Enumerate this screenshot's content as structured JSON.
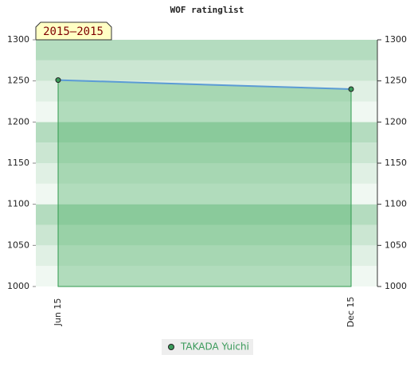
{
  "chart_data": {
    "type": "line",
    "title": "WOF ratinglist",
    "badge": "2015–2015",
    "categories": [
      "Jun 15",
      "Dec 15"
    ],
    "series": [
      {
        "name": "TAKADA Yuichi",
        "color": "#5b9bd5",
        "values": [
          1251,
          1240
        ]
      }
    ],
    "ylim": [
      1000,
      1300
    ],
    "yticks": [
      1000,
      1050,
      1100,
      1150,
      1200,
      1250,
      1300
    ],
    "y2lim": [
      1000,
      1300
    ],
    "y2ticks": [
      1000,
      1050,
      1100,
      1150,
      1200,
      1250,
      1300
    ]
  }
}
